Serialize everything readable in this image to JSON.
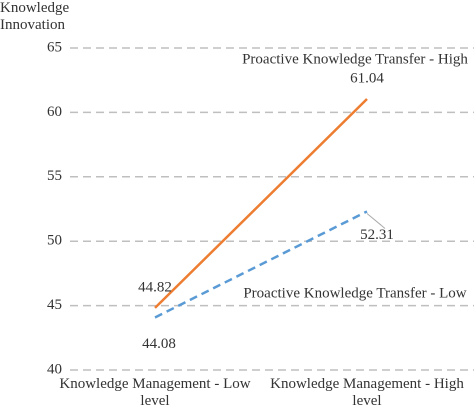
{
  "chart_data": {
    "type": "line",
    "y_label": "Knowledge Innovation",
    "categories": [
      "Knowledge Management - Low level",
      "Knowledge Management - High level"
    ],
    "series": [
      {
        "name": "Proactive Knowledge Transfer - High",
        "color": "#ed7d31",
        "dash": false,
        "values": [
          44.82,
          61.04
        ]
      },
      {
        "name": "Proactive Knowledge Transfer - Low",
        "color": "#5b9bd5",
        "dash": true,
        "values": [
          44.08,
          52.31
        ]
      }
    ],
    "ylim": [
      40,
      65
    ],
    "yticks": [
      40,
      45,
      50,
      55,
      60,
      65
    ],
    "grid": true
  }
}
